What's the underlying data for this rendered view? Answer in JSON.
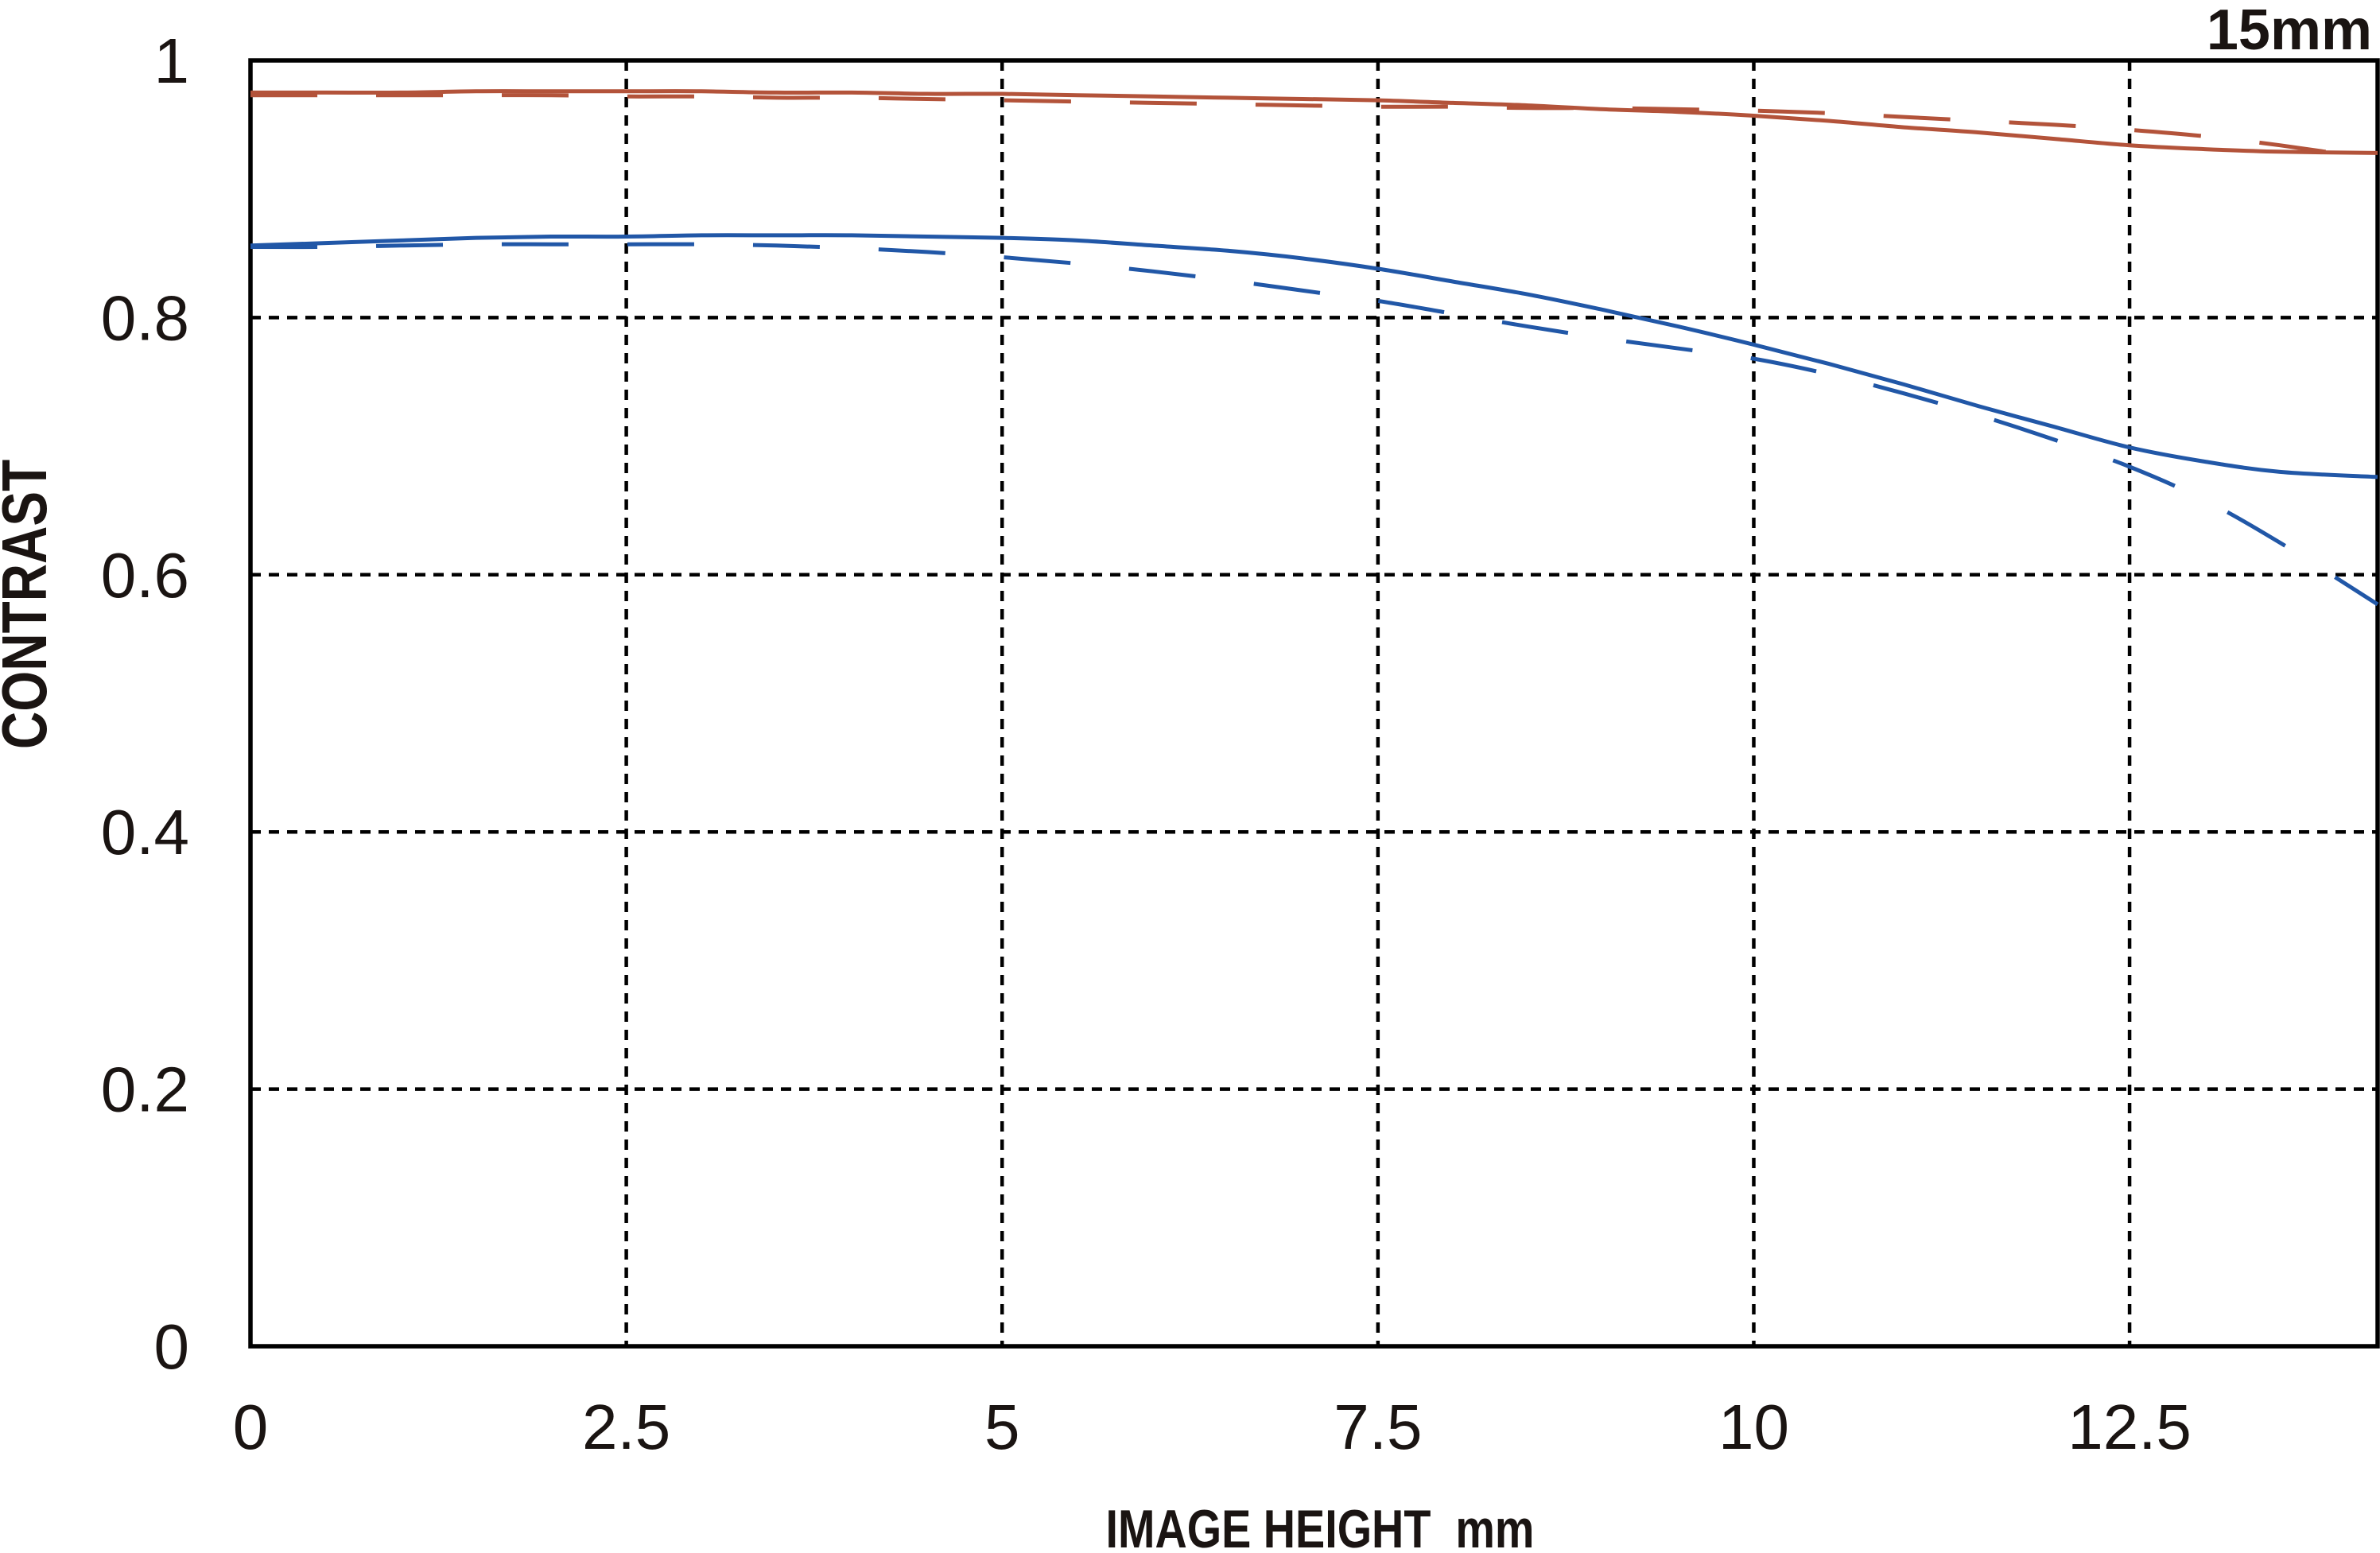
{
  "title": "15mm",
  "chart_data": {
    "type": "line",
    "title": "15mm",
    "xlabel": "IMAGE HEIGHT  mm",
    "ylabel": "CONTRAST",
    "xlim": [
      0,
      14.15
    ],
    "ylim": [
      0,
      1
    ],
    "x_ticks": [
      0,
      2.5,
      5,
      7.5,
      10,
      12.5
    ],
    "x_tick_labels": [
      "0",
      "2.5",
      "5",
      "7.5",
      "10",
      "12.5"
    ],
    "y_ticks": [
      0,
      0.2,
      0.4,
      0.6,
      0.8,
      1
    ],
    "y_tick_labels": [
      "0",
      "0.2",
      "0.4",
      "0.6",
      "0.8",
      "1"
    ],
    "grid": true,
    "grid_style": "dashed",
    "legend_position": "none",
    "colors": {
      "red": "#b3533a",
      "blue": "#2157a7",
      "grid": "#000000"
    },
    "series": [
      {
        "name": "red-solid",
        "color": "#b3533a",
        "style": "solid",
        "x": [
          0,
          0.5,
          1,
          1.5,
          2,
          2.5,
          3,
          3.5,
          4,
          4.5,
          5,
          5.5,
          6,
          6.5,
          7,
          7.5,
          8,
          8.5,
          9,
          9.5,
          10,
          10.5,
          11,
          11.5,
          12,
          12.5,
          13,
          13.5,
          14.15
        ],
        "y": [
          0.975,
          0.975,
          0.975,
          0.976,
          0.976,
          0.976,
          0.976,
          0.975,
          0.975,
          0.974,
          0.974,
          0.973,
          0.972,
          0.971,
          0.97,
          0.969,
          0.967,
          0.965,
          0.962,
          0.96,
          0.957,
          0.953,
          0.948,
          0.944,
          0.939,
          0.934,
          0.931,
          0.929,
          0.928
        ]
      },
      {
        "name": "red-dashed",
        "color": "#b3533a",
        "style": "dashed",
        "x": [
          0,
          0.5,
          1,
          1.5,
          2,
          2.5,
          3,
          3.5,
          4,
          4.5,
          5,
          5.5,
          6,
          6.5,
          7,
          7.5,
          8,
          8.5,
          9,
          9.5,
          10,
          10.5,
          11,
          11.5,
          12,
          12.5,
          13,
          13.5,
          14.15
        ],
        "y": [
          0.973,
          0.973,
          0.973,
          0.973,
          0.973,
          0.972,
          0.972,
          0.971,
          0.971,
          0.97,
          0.969,
          0.968,
          0.967,
          0.966,
          0.965,
          0.964,
          0.964,
          0.963,
          0.963,
          0.962,
          0.961,
          0.959,
          0.956,
          0.953,
          0.95,
          0.946,
          0.941,
          0.934,
          0.923
        ]
      },
      {
        "name": "blue-solid",
        "color": "#2157a7",
        "style": "solid",
        "x": [
          0,
          0.5,
          1,
          1.5,
          2,
          2.5,
          3,
          3.5,
          4,
          4.5,
          5,
          5.5,
          6,
          6.5,
          7,
          7.5,
          8,
          8.5,
          9,
          9.5,
          10,
          10.5,
          11,
          11.5,
          12,
          12.5,
          13,
          13.5,
          14.15
        ],
        "y": [
          0.856,
          0.858,
          0.86,
          0.862,
          0.863,
          0.863,
          0.864,
          0.864,
          0.864,
          0.863,
          0.862,
          0.86,
          0.856,
          0.852,
          0.846,
          0.838,
          0.828,
          0.818,
          0.806,
          0.793,
          0.779,
          0.764,
          0.748,
          0.731,
          0.715,
          0.699,
          0.688,
          0.68,
          0.676
        ]
      },
      {
        "name": "blue-dashed",
        "color": "#2157a7",
        "style": "dashed",
        "x": [
          0,
          0.5,
          1,
          1.5,
          2,
          2.5,
          3,
          3.5,
          4,
          4.5,
          5,
          5.5,
          6,
          6.5,
          7,
          7.5,
          8,
          8.5,
          9,
          9.5,
          10,
          10.5,
          11,
          11.5,
          12,
          12.5,
          13,
          13.5,
          14.15
        ],
        "y": [
          0.855,
          0.855,
          0.856,
          0.857,
          0.857,
          0.857,
          0.857,
          0.856,
          0.854,
          0.851,
          0.847,
          0.842,
          0.836,
          0.829,
          0.821,
          0.813,
          0.803,
          0.793,
          0.784,
          0.776,
          0.768,
          0.756,
          0.741,
          0.724,
          0.705,
          0.684,
          0.658,
          0.625,
          0.577
        ]
      }
    ]
  }
}
